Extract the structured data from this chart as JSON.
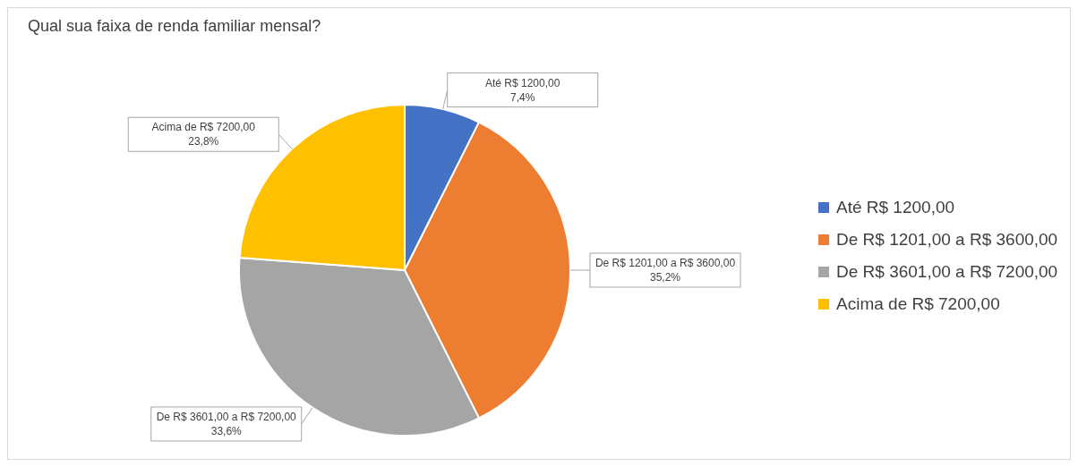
{
  "chart_data": {
    "type": "pie",
    "title": "Qual sua faixa de renda familiar mensal?",
    "categories": [
      "Até R$ 1200,00",
      "De R$ 1201,00 a R$ 3600,00",
      "De R$ 3601,00 a R$ 7200,00",
      "Acima de R$ 7200,00"
    ],
    "values": [
      7.4,
      35.2,
      33.6,
      23.8
    ],
    "value_labels": [
      "7,4%",
      "35,2%",
      "33,6%",
      "23,8%"
    ],
    "colors": [
      "#4472c4",
      "#ed7d31",
      "#a5a5a5",
      "#ffc000"
    ],
    "legend": "right"
  }
}
